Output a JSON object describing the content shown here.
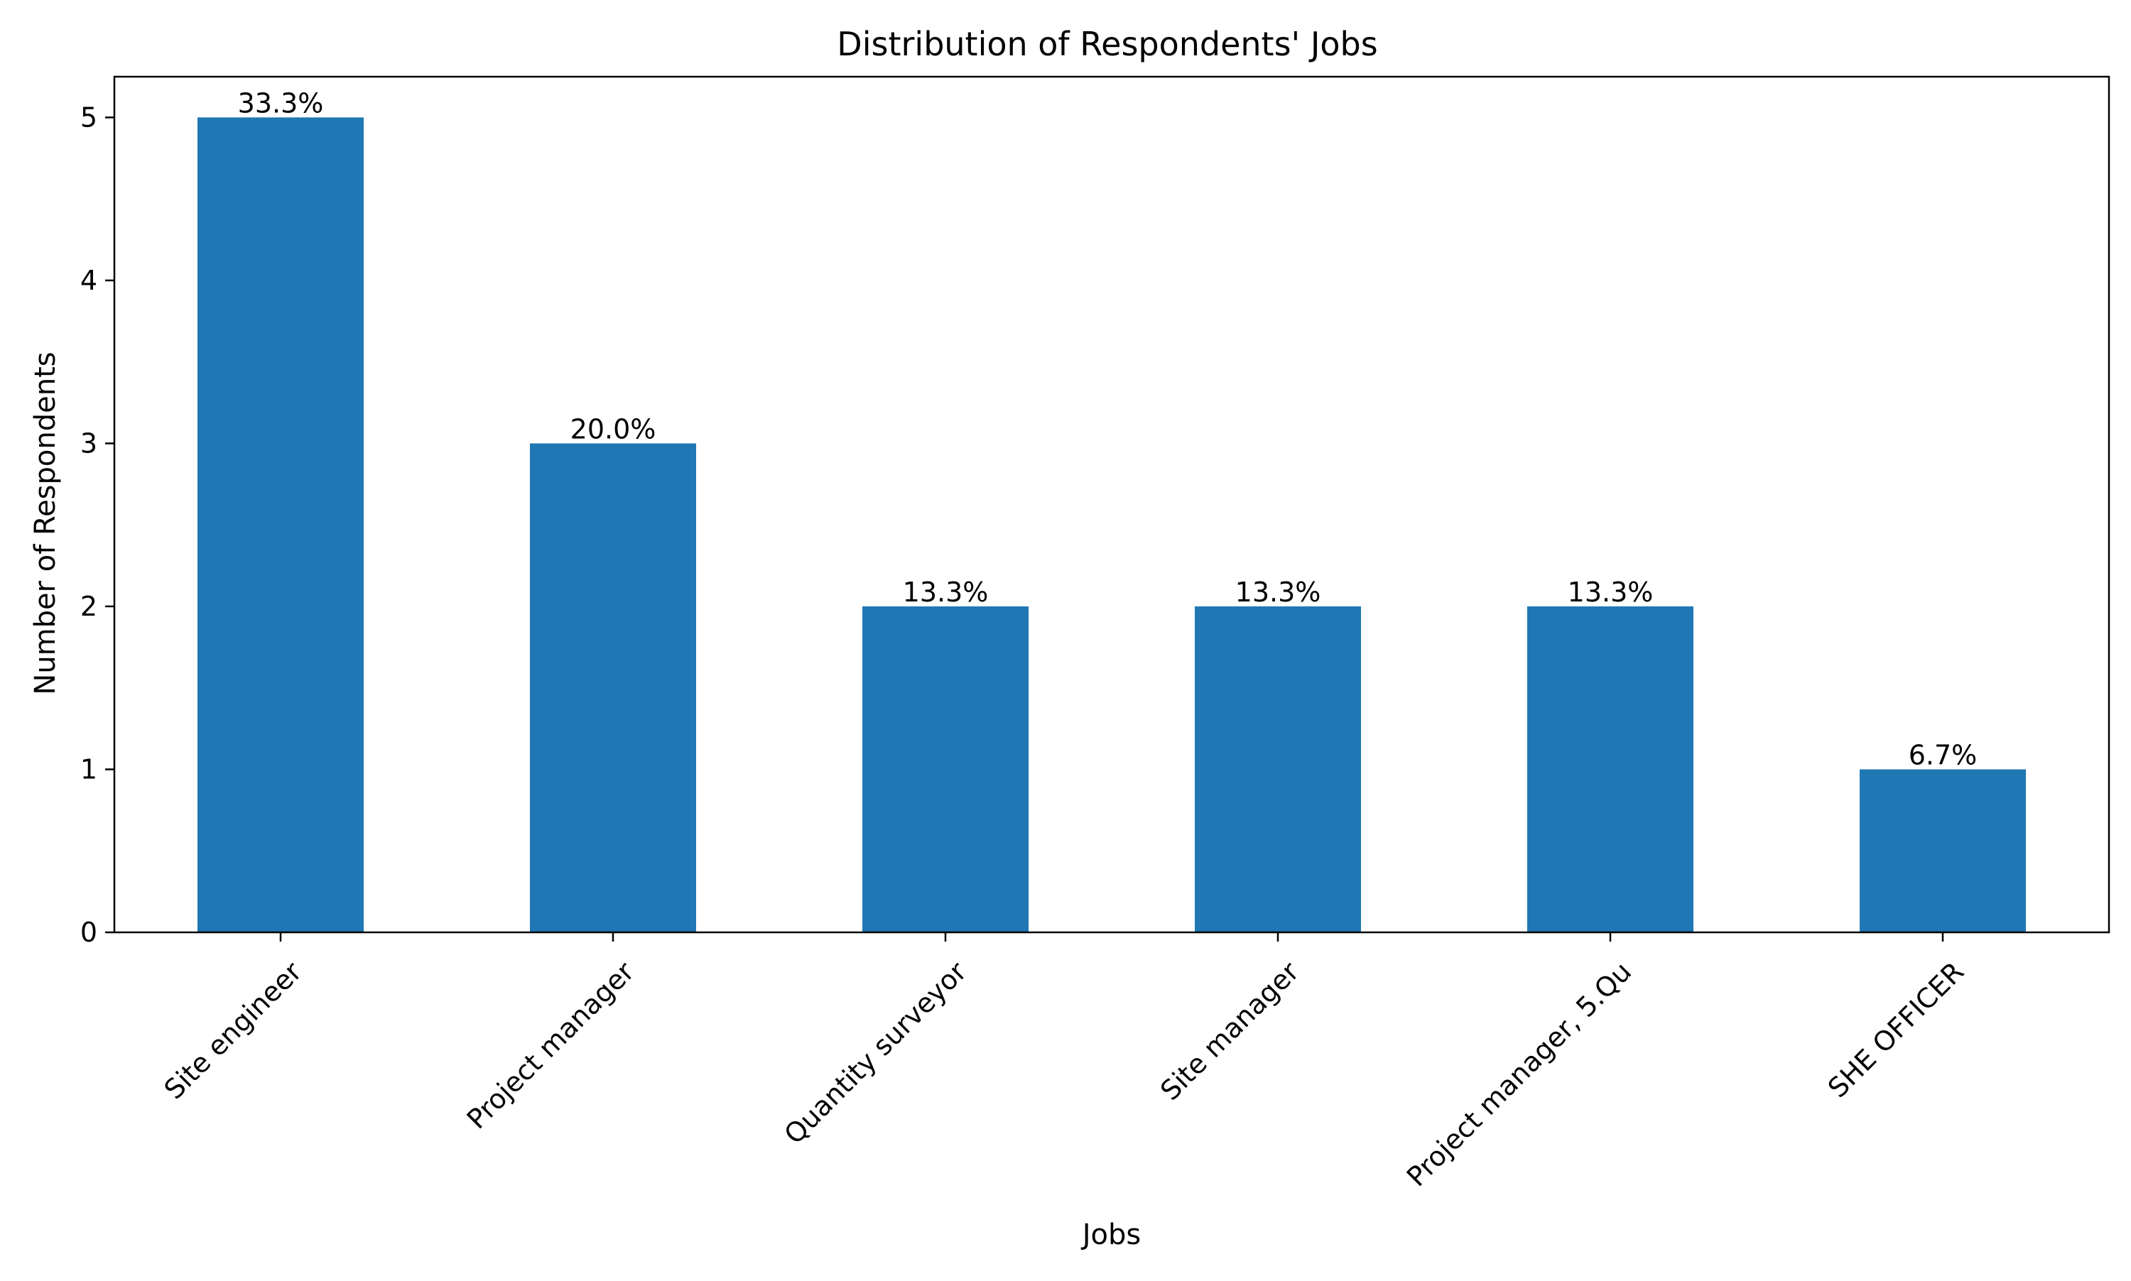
{
  "chart_data": {
    "type": "bar",
    "title": "Distribution of Respondents' Jobs",
    "xlabel": "Jobs",
    "ylabel": "Number of Respondents",
    "categories": [
      "Site engineer",
      "Project manager",
      "Quantity surveyor",
      "Site manager",
      "Project manager, 5.Qu",
      "SHE OFFICER"
    ],
    "values": [
      5,
      3,
      2,
      2,
      2,
      1
    ],
    "data_labels": [
      "33.3%",
      "20.0%",
      "13.3%",
      "13.3%",
      "13.3%",
      "6.7%"
    ],
    "ylim": [
      0,
      5.25
    ],
    "yticks": [
      0,
      1,
      2,
      3,
      4,
      5
    ],
    "grid": false,
    "legend": "none",
    "colors": {
      "bar": "#1f77b4",
      "axis": "#000000",
      "background": "#ffffff"
    }
  }
}
